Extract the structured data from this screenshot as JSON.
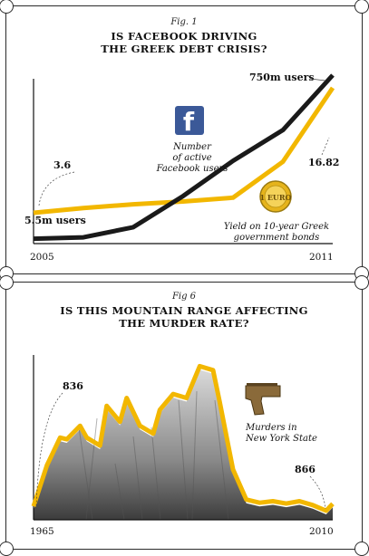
{
  "colors": {
    "facebook": "#1a1a1a",
    "bonds": "#f2b700",
    "murders": "#f2b700",
    "facebook_logo": "#3b5998",
    "coin": "#e6b41c",
    "gun": "#8a6a3a"
  },
  "fig1": {
    "label": "Fig. 1",
    "title_line1": "IS FACEBOOK DRIVING",
    "title_line2": "THE GREEK DEBT CRISIS?",
    "x_start": "2005",
    "x_end": "2011",
    "label_start_users": "5.5m users",
    "label_end_users": "750m users",
    "label_start_yield": "3.6",
    "label_end_yield": "16.82",
    "fb_caption": [
      "Number",
      "of active",
      "Facebook users"
    ],
    "bond_caption": [
      "Yield on 10-year Greek",
      "government bonds"
    ],
    "coin_text": "1 EURO",
    "fb_icon": "facebook-logo-icon",
    "coin_icon": "euro-coin-icon"
  },
  "fig2": {
    "label": "Fig 6",
    "title_line1": "IS THIS MOUNTAIN RANGE AFFECTING",
    "title_line2": "THE MURDER RATE?",
    "x_start": "1965",
    "x_end": "2010",
    "label_start": "836",
    "label_end": "866",
    "caption": [
      "Murders in",
      "New York State"
    ],
    "gun_icon": "handgun-icon"
  },
  "chart_data": [
    {
      "type": "line",
      "title": "IS FACEBOOK DRIVING THE GREEK DEBT CRISIS?",
      "x": [
        2005,
        2006,
        2007,
        2008,
        2009,
        2010,
        2011
      ],
      "series": [
        {
          "name": "Number of active Facebook users",
          "unit": "m users",
          "values": [
            5.5,
            12,
            58,
            200,
            360,
            500,
            750
          ]
        },
        {
          "name": "Yield on 10-year Greek government bonds",
          "values": [
            3.6,
            4.1,
            4.5,
            4.8,
            5.2,
            9,
            16.82
          ]
        }
      ]
    },
    {
      "type": "line",
      "title": "IS THIS MOUNTAIN RANGE AFFECTING THE MURDER RATE?",
      "x": [
        1965,
        1967,
        1969,
        1970,
        1972,
        1973,
        1975,
        1976,
        1978,
        1979,
        1981,
        1983,
        1984,
        1986,
        1988,
        1990,
        1992,
        1993,
        1995,
        1997,
        1999,
        2001,
        2003,
        2005,
        2007,
        2009,
        2010
      ],
      "series": [
        {
          "name": "Murders in New York State",
          "values": [
            836,
            1350,
            1700,
            1680,
            1850,
            1700,
            1600,
            2100,
            1900,
            2200,
            1850,
            1750,
            2050,
            2250,
            2200,
            2600,
            2550,
            2150,
            1300,
            920,
            880,
            900,
            870,
            900,
            850,
            780,
            866
          ]
        }
      ]
    }
  ]
}
